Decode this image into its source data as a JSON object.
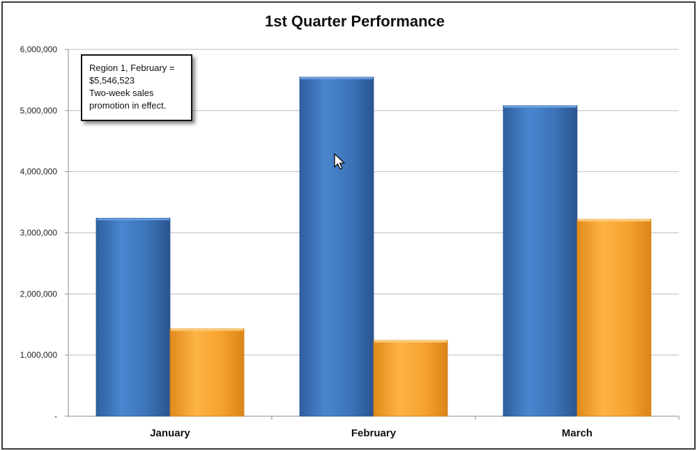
{
  "chart_data": {
    "type": "bar",
    "title": "1st Quarter Performance",
    "categories": [
      "January",
      "February",
      "March"
    ],
    "series": [
      {
        "values": [
          3240000,
          5546523,
          5080000
        ]
      },
      {
        "values": [
          1430000,
          1240000,
          3220000
        ]
      }
    ],
    "ylim": [
      0,
      6000000
    ],
    "y_tick_values": [
      0,
      1000000,
      2000000,
      3000000,
      4000000,
      5000000,
      6000000
    ],
    "y_tick_labels": [
      "-",
      "1,000,000",
      "2,000,000",
      "3,000,000",
      "4,000,000",
      "5,000,000",
      "6,000,000"
    ],
    "grid": true,
    "xlabel": "",
    "ylabel": "",
    "colors": {
      "series_1": "#3f78c0",
      "series_2": "#f5a12e",
      "gridline": "#bdbdbd",
      "axis": "#8a8a8a"
    },
    "annotation": {
      "lines": [
        "Region 1, February =",
        "$5,546,523",
        "Two-week sales",
        "promotion in effect."
      ]
    }
  },
  "cursor_icon": "mouse-pointer-icon"
}
